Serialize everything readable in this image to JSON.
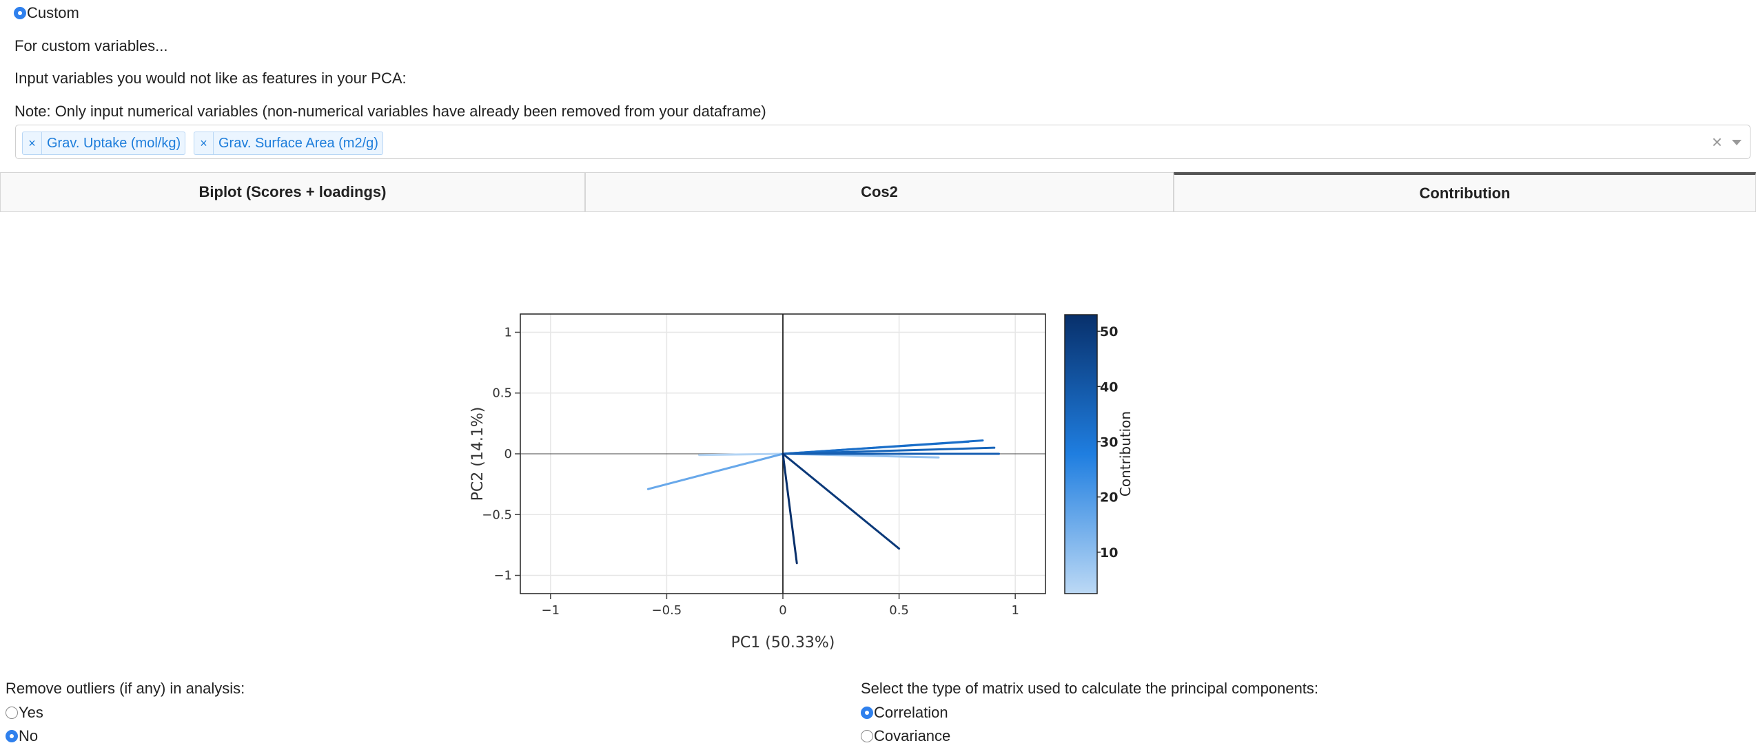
{
  "custom_radio": {
    "label": "Custom",
    "checked": true
  },
  "texts": {
    "for_custom": "For custom variables...",
    "input_vars": "Input variables you would not like as features in your PCA:",
    "note": "Note: Only input numerical variables (non-numerical variables have already been removed from your dataframe)"
  },
  "multiselect": {
    "chips": [
      {
        "remove": "×",
        "label": "Grav. Uptake (mol/kg)"
      },
      {
        "remove": "×",
        "label": "Grav. Surface Area (m2/g)"
      }
    ],
    "clear_glyph": "×"
  },
  "tabs": [
    {
      "label": "Biplot (Scores + loadings)",
      "selected": false
    },
    {
      "label": "Cos2",
      "selected": false
    },
    {
      "label": "Contribution",
      "selected": true
    }
  ],
  "chart_data": {
    "type": "line",
    "title": "",
    "xlabel": "PC1 (50.33%)",
    "ylabel": "PC2 (14.1%)",
    "xlim": [
      -1.13,
      1.13
    ],
    "ylim": [
      -1.15,
      1.15
    ],
    "xticks": [
      -1,
      -0.5,
      0,
      0.5,
      1
    ],
    "xtick_labels": [
      "−1",
      "−0.5",
      "0",
      "0.5",
      "1"
    ],
    "yticks": [
      -1,
      -0.5,
      0,
      0.5,
      1
    ],
    "ytick_labels": [
      "−1",
      "−0.5",
      "0",
      "0.5",
      "1"
    ],
    "grid": true,
    "colorbar": {
      "label": "Contribution",
      "range": [
        2.5,
        53
      ],
      "ticks": [
        10,
        20,
        30,
        40,
        50
      ],
      "tick_labels": [
        "10",
        "20",
        "30",
        "40",
        "50"
      ],
      "colors": [
        "#bcd9f5",
        "#1f7ee0",
        "#08306b"
      ]
    },
    "series": [
      {
        "x": [
          0,
          0.93
        ],
        "y": [
          0,
          0.0
        ],
        "contribution": 38
      },
      {
        "x": [
          0,
          0.91
        ],
        "y": [
          0,
          0.05
        ],
        "contribution": 36
      },
      {
        "x": [
          0,
          0.86
        ],
        "y": [
          0,
          0.11
        ],
        "contribution": 33
      },
      {
        "x": [
          0,
          0.8
        ],
        "y": [
          0,
          0.1
        ],
        "contribution": 30
      },
      {
        "x": [
          0,
          0.67
        ],
        "y": [
          0,
          -0.03
        ],
        "contribution": 9
      },
      {
        "x": [
          0,
          0.5
        ],
        "y": [
          0,
          -0.78
        ],
        "contribution": 50
      },
      {
        "x": [
          0,
          0.06
        ],
        "y": [
          0,
          -0.9
        ],
        "contribution": 53
      },
      {
        "x": [
          0,
          -0.58
        ],
        "y": [
          0,
          -0.29
        ],
        "contribution": 16
      },
      {
        "x": [
          0,
          -0.36
        ],
        "y": [
          0,
          -0.01
        ],
        "contribution": 4
      }
    ]
  },
  "outliers": {
    "label": "Remove outliers (if any) in analysis:",
    "options": [
      {
        "label": "Yes",
        "checked": false
      },
      {
        "label": "No",
        "checked": true
      }
    ]
  },
  "matrix": {
    "label": "Select the type of matrix used to calculate the principal components:",
    "options": [
      {
        "label": "Correlation",
        "checked": true
      },
      {
        "label": "Covariance",
        "checked": false
      }
    ]
  }
}
